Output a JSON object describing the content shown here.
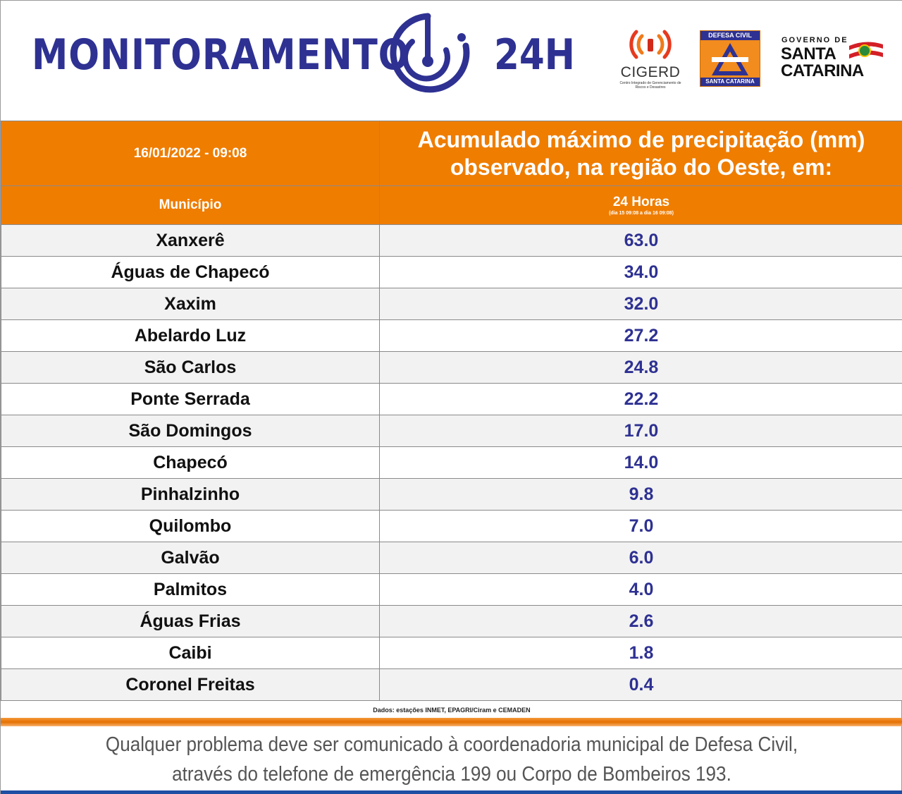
{
  "header": {
    "brand_title": "MONITORAMENTO",
    "brand_suffix": "24H",
    "logos": {
      "cigerd_name": "CIGERD",
      "cigerd_sub": "Centro Integrado de Gerenciamento de Riscos e Desastres",
      "defesa_top": "DEFESA CIVIL",
      "defesa_bottom": "SANTA CATARINA",
      "sc_small": "GOVERNO DE",
      "sc_line1": "SANTA",
      "sc_line2": "CATARINA"
    }
  },
  "table": {
    "datetime": "16/01/2022 - 09:08",
    "title": "Acumulado máximo de precipitação (mm) observado, na região do Oeste, em:",
    "col_municipio": "Município",
    "col_period": "24 Horas",
    "col_period_detail": "(dia 15 09:08 a dia 16 09:08)",
    "rows": [
      {
        "name": "Xanxerê",
        "value": "63.0"
      },
      {
        "name": "Águas de Chapecó",
        "value": "34.0"
      },
      {
        "name": "Xaxim",
        "value": "32.0"
      },
      {
        "name": "Abelardo Luz",
        "value": "27.2"
      },
      {
        "name": "São Carlos",
        "value": "24.8"
      },
      {
        "name": "Ponte Serrada",
        "value": "22.2"
      },
      {
        "name": "São Domingos",
        "value": "17.0"
      },
      {
        "name": "Chapecó",
        "value": "14.0"
      },
      {
        "name": "Pinhalzinho",
        "value": "9.8"
      },
      {
        "name": "Quilombo",
        "value": "7.0"
      },
      {
        "name": "Galvão",
        "value": "6.0"
      },
      {
        "name": "Palmitos",
        "value": "4.0"
      },
      {
        "name": "Águas Frias",
        "value": "2.6"
      },
      {
        "name": "Caibi",
        "value": "1.8"
      },
      {
        "name": "Coronel Freitas",
        "value": "0.4"
      }
    ]
  },
  "source": "Dados: estações INMET, EPAGRI/Ciram e CEMADEN",
  "footer": {
    "line1": "Qualquer problema deve ser comunicado à coordenadoria municipal de Defesa Civil,",
    "line2": "através do telefone de emergência 199 ou Corpo de Bombeiros 193."
  },
  "colors": {
    "orange": "#ef7d00",
    "navy": "#2e3192",
    "row_shade": "#f2f2f2"
  }
}
